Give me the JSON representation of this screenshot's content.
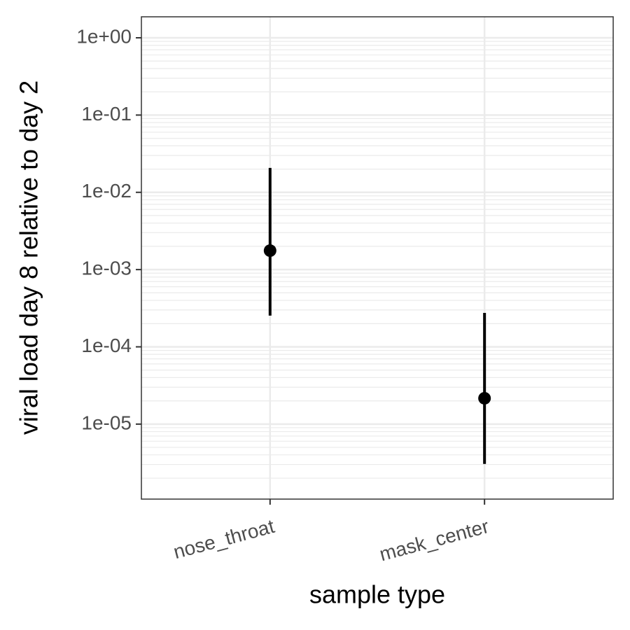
{
  "chart_data": {
    "type": "pointrange",
    "x_label": "sample type",
    "y_label": "viral load day 8 relative to day 2",
    "categories": [
      "nose_throat",
      "mask_center"
    ],
    "values": [
      0.00176,
      2.16e-05
    ],
    "lower": [
      0.000254,
      3.05e-06
    ],
    "upper": [
      0.0207,
      0.000275
    ],
    "color": "#000000",
    "y_log": true,
    "ylim": [
      1.07e-06,
      1.87
    ],
    "yticks": [
      {
        "value": 1,
        "label": "1e+00"
      },
      {
        "value": 0.1,
        "label": "1e-01"
      },
      {
        "value": 0.01,
        "label": "1e-02"
      },
      {
        "value": 0.001,
        "label": "1e-03"
      },
      {
        "value": 0.0001,
        "label": "1e-04"
      },
      {
        "value": 1e-05,
        "label": "1e-05"
      }
    ],
    "grid": true,
    "minor_grid": true
  }
}
